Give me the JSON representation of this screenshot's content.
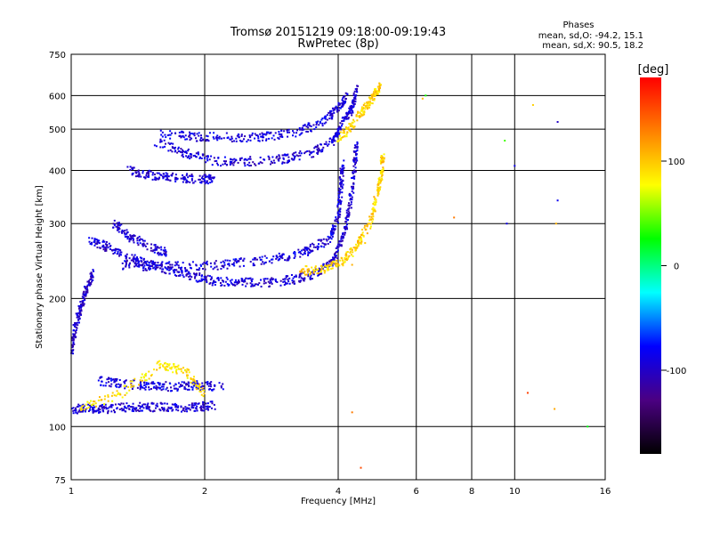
{
  "chart_data": {
    "type": "scatter",
    "title": "Tromsø 20151219 09:18:00-09:19:43",
    "subtitle": "RwPretec (8p)",
    "xlabel": "Frequency [MHz]",
    "ylabel": "Stationary phase Virtual Height [km]",
    "x_scale": "log",
    "y_scale": "log",
    "xlim": [
      1,
      16
    ],
    "ylim": [
      75,
      750
    ],
    "x_ticks": [
      "1",
      "2",
      "4",
      "6",
      "8",
      "10",
      "16"
    ],
    "y_ticks": [
      "75",
      "100",
      "200",
      "300",
      "400",
      "500",
      "600",
      "750"
    ],
    "grid": true,
    "phase_box": {
      "title": "Phases",
      "line1": "mean, sd,O: -94.2, 15.1",
      "line2": "mean, sd,X:  90.5, 18.2"
    },
    "colorbar": {
      "label": "[deg]",
      "ticks": [
        "100",
        "0",
        "-100"
      ],
      "range": [
        -180,
        180
      ],
      "colors": [
        "#000000",
        "#4b0082",
        "#0000ff",
        "#00ffff",
        "#00ff00",
        "#ffff00",
        "#ff8000",
        "#ff0000"
      ]
    },
    "traces": [
      {
        "name": "",
        "phase": -95,
        "points": [
          [
            1.0,
            110
          ],
          [
            1.1,
            110
          ],
          [
            1.2,
            110
          ],
          [
            1.35,
            111
          ],
          [
            1.5,
            111
          ],
          [
            1.7,
            111
          ],
          [
            1.9,
            111
          ],
          [
            2.1,
            112
          ]
        ]
      },
      {
        "name": "",
        "phase": -90,
        "points": [
          [
            1.15,
            128
          ],
          [
            1.3,
            126
          ],
          [
            1.5,
            125
          ],
          [
            1.7,
            124
          ],
          [
            1.9,
            125
          ],
          [
            2.2,
            124
          ]
        ]
      },
      {
        "name": "",
        "phase": -100,
        "points": [
          [
            1.0,
            150
          ],
          [
            1.02,
            170
          ],
          [
            1.05,
            190
          ],
          [
            1.08,
            210
          ],
          [
            1.12,
            230
          ]
        ]
      },
      {
        "name": "",
        "phase": -95,
        "points": [
          [
            1.1,
            275
          ],
          [
            1.2,
            265
          ],
          [
            1.35,
            250
          ],
          [
            1.5,
            240
          ],
          [
            1.7,
            232
          ],
          [
            1.9,
            225
          ],
          [
            2.1,
            220
          ],
          [
            2.4,
            218
          ],
          [
            2.8,
            218
          ],
          [
            3.2,
            222
          ],
          [
            3.6,
            230
          ],
          [
            3.9,
            245
          ],
          [
            4.1,
            280
          ],
          [
            4.25,
            330
          ],
          [
            4.35,
            400
          ],
          [
            4.4,
            460
          ]
        ]
      },
      {
        "name": "",
        "phase": -92,
        "points": [
          [
            1.3,
            240
          ],
          [
            1.5,
            238
          ],
          [
            1.8,
            238
          ],
          [
            2.2,
            240
          ],
          [
            2.6,
            245
          ],
          [
            3.0,
            250
          ],
          [
            3.4,
            258
          ],
          [
            3.8,
            275
          ],
          [
            4.0,
            310
          ],
          [
            4.05,
            360
          ],
          [
            4.1,
            420
          ]
        ]
      },
      {
        "name": "",
        "phase": -95,
        "points": [
          [
            1.25,
            300
          ],
          [
            1.35,
            280
          ],
          [
            1.5,
            265
          ],
          [
            1.65,
            255
          ]
        ]
      },
      {
        "name": "",
        "phase": -95,
        "points": [
          [
            1.35,
            400
          ],
          [
            1.5,
            390
          ],
          [
            1.7,
            385
          ],
          [
            1.95,
            382
          ],
          [
            2.1,
            380
          ]
        ]
      },
      {
        "name": "",
        "phase": -95,
        "points": [
          [
            1.55,
            470
          ],
          [
            1.8,
            440
          ],
          [
            2.1,
            420
          ],
          [
            2.5,
            420
          ],
          [
            3.0,
            425
          ],
          [
            3.5,
            440
          ],
          [
            3.9,
            470
          ],
          [
            4.1,
            520
          ],
          [
            4.3,
            560
          ],
          [
            4.4,
            620
          ]
        ]
      },
      {
        "name": "",
        "phase": -90,
        "points": [
          [
            1.6,
            485
          ],
          [
            1.9,
            480
          ],
          [
            2.3,
            478
          ],
          [
            2.7,
            480
          ],
          [
            3.2,
            490
          ],
          [
            3.7,
            520
          ],
          [
            4.0,
            560
          ],
          [
            4.2,
            600
          ]
        ]
      },
      {
        "name": "",
        "phase": 95,
        "points": [
          [
            3.3,
            232
          ],
          [
            3.7,
            235
          ],
          [
            4.1,
            245
          ],
          [
            4.4,
            265
          ],
          [
            4.7,
            300
          ],
          [
            4.9,
            350
          ],
          [
            5.0,
            390
          ],
          [
            5.05,
            430
          ]
        ]
      },
      {
        "name": "",
        "phase": 95,
        "points": [
          [
            4.3,
            240
          ],
          [
            4.6,
            270
          ],
          [
            4.8,
            320
          ],
          [
            4.95,
            380
          ]
        ]
      },
      {
        "name": "",
        "phase": 95,
        "points": [
          [
            4.0,
            470
          ],
          [
            4.3,
            510
          ],
          [
            4.6,
            560
          ],
          [
            4.8,
            600
          ],
          [
            5.0,
            630
          ]
        ]
      },
      {
        "name": "",
        "phase": 90,
        "points": [
          [
            1.05,
            110
          ],
          [
            1.3,
            120
          ],
          [
            1.6,
            140
          ],
          [
            1.8,
            135
          ],
          [
            2.0,
            120
          ]
        ]
      },
      {
        "name": "",
        "phase": 150,
        "points": [
          [
            7.3,
            310
          ],
          [
            10.7,
            120
          ],
          [
            4.3,
            108
          ],
          [
            4.5,
            80
          ]
        ]
      },
      {
        "name": "",
        "phase": -100,
        "points": [
          [
            10.0,
            410
          ],
          [
            9.6,
            300
          ],
          [
            12.5,
            340
          ],
          [
            12.5,
            520
          ]
        ]
      },
      {
        "name": "",
        "phase": 105,
        "points": [
          [
            11.0,
            570
          ],
          [
            12.4,
            300
          ],
          [
            12.3,
            110
          ],
          [
            6.2,
            590
          ]
        ]
      },
      {
        "name": "",
        "phase": 30,
        "points": [
          [
            9.5,
            470
          ],
          [
            14.6,
            100
          ],
          [
            6.3,
            600
          ]
        ]
      }
    ]
  }
}
